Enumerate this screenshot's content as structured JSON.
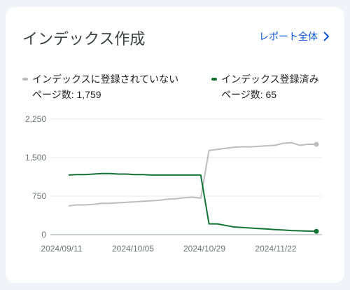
{
  "card": {
    "title": "インデックス作成",
    "report_link": "レポート全体"
  },
  "legend": [
    {
      "label": "インデックスに登録されていない",
      "count_text": "ページ数: 1,759",
      "color": "#bdbdbd"
    },
    {
      "label": "インデックス登録済み",
      "count_text": "ページ数: 65",
      "color": "#137333"
    }
  ],
  "icons": {
    "report_link": "chevron-right-icon"
  },
  "chart_data": {
    "type": "line",
    "x_ticks": [
      "2024/09/11",
      "2024/10/05",
      "2024/10/29",
      "2024/11/22"
    ],
    "y_ticks": [
      "0",
      "750",
      "1,500",
      "2,250"
    ],
    "ylim": [
      0,
      2250
    ],
    "x": [
      "09/11",
      "09/14",
      "09/17",
      "09/20",
      "09/23",
      "09/26",
      "09/29",
      "10/02",
      "10/05",
      "10/08",
      "10/11",
      "10/14",
      "10/17",
      "10/20",
      "10/23",
      "10/26",
      "10/28",
      "10/29",
      "10/30",
      "11/02",
      "11/05",
      "11/08",
      "11/11",
      "11/14",
      "11/17",
      "11/20",
      "11/23",
      "11/26",
      "11/29",
      "12/02",
      "12/05"
    ],
    "series": [
      {
        "color": "#bdbdbd",
        "values": [
          560,
          580,
          580,
          590,
          610,
          610,
          620,
          630,
          640,
          650,
          660,
          670,
          690,
          700,
          720,
          730,
          710,
          1640,
          1660,
          1680,
          1700,
          1710,
          1710,
          1720,
          1730,
          1740,
          1780,
          1790,
          1740,
          1760,
          1759
        ]
      },
      {
        "color": "#137333",
        "values": [
          1160,
          1170,
          1170,
          1180,
          1190,
          1190,
          1180,
          1180,
          1170,
          1170,
          1160,
          1160,
          1160,
          1160,
          1160,
          1160,
          1160,
          210,
          210,
          180,
          150,
          140,
          130,
          120,
          110,
          100,
          90,
          80,
          75,
          70,
          65
        ]
      }
    ],
    "grid": true
  }
}
